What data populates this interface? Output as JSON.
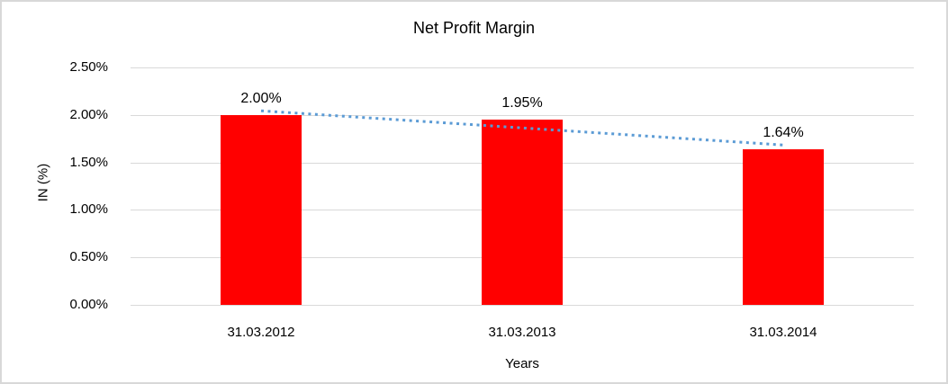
{
  "chart_data": {
    "type": "bar",
    "title": "Net Profit Margin",
    "categories": [
      "31.03.2012",
      "31.03.2013",
      "31.03.2014"
    ],
    "values": [
      2.0,
      1.95,
      1.64
    ],
    "data_labels": [
      "2.00%",
      "1.95%",
      "1.64%"
    ],
    "xlabel": "Years",
    "ylabel": "IN (%)",
    "ylim": [
      0,
      2.5
    ],
    "ytick_step": 0.5,
    "ytick_labels": [
      "0.00%",
      "0.50%",
      "1.00%",
      "1.50%",
      "2.00%",
      "2.50%"
    ],
    "grid": true,
    "legend": "none",
    "bar_color": "#ff0000",
    "gridline_color": "#d9d9d9",
    "trendline": {
      "type": "linear",
      "style": "dotted",
      "color": "#5b9bd5"
    }
  }
}
